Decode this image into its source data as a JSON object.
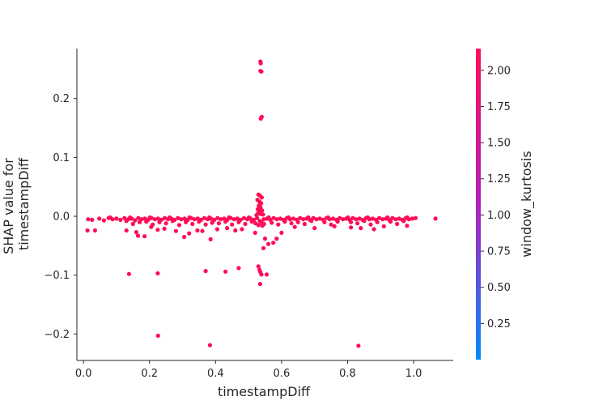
{
  "chart_data": {
    "type": "scatter",
    "xlabel": "timestampDiff",
    "ylabel_lines": [
      "SHAP value for",
      "timestampDiff"
    ],
    "xlim": [
      -0.02,
      1.12
    ],
    "ylim": [
      -0.245,
      0.285
    ],
    "x_ticks": [
      0.0,
      0.2,
      0.4,
      0.6,
      0.8,
      1.0
    ],
    "x_tick_labels": [
      "0.0",
      "0.2",
      "0.4",
      "0.6",
      "0.8",
      "1.0"
    ],
    "y_ticks": [
      0.2,
      0.1,
      0.0,
      -0.1,
      -0.2
    ],
    "y_tick_labels": [
      "0.2",
      "0.1",
      "0.0",
      "−0.1",
      "−0.2"
    ],
    "point_color": "#ff0d57",
    "colorbar": {
      "label": "window_kurtosis",
      "range": [
        0.0,
        2.15
      ],
      "ticks": [
        2.0,
        1.75,
        1.5,
        1.25,
        1.0,
        0.75,
        0.5,
        0.25
      ],
      "tick_labels": [
        "2.00",
        "1.75",
        "1.50",
        "1.25",
        "1.00",
        "0.75",
        "0.50",
        "0.25"
      ],
      "color_low": "#008bfb",
      "color_mid": "#b21ebe",
      "color_high": "#ff0d57"
    },
    "grid": false,
    "points": [
      [
        0.536,
        0.263
      ],
      [
        0.537,
        0.26
      ],
      [
        0.536,
        0.247
      ],
      [
        0.539,
        0.246
      ],
      [
        0.54,
        0.169
      ],
      [
        0.537,
        0.166
      ],
      [
        0.53,
        0.037
      ],
      [
        0.535,
        0.035
      ],
      [
        0.54,
        0.032
      ],
      [
        0.527,
        0.028
      ],
      [
        0.533,
        0.025
      ],
      [
        0.538,
        0.022
      ],
      [
        0.531,
        0.018
      ],
      [
        0.536,
        0.015
      ],
      [
        0.528,
        0.012
      ],
      [
        0.541,
        0.01
      ],
      [
        0.533,
        0.008
      ],
      [
        0.529,
        0.005
      ],
      [
        0.537,
        0.004
      ],
      [
        0.544,
        0.003
      ],
      [
        0.524,
        0.002
      ],
      [
        0.534,
        -0.008
      ],
      [
        0.539,
        -0.01
      ],
      [
        0.521,
        -0.012
      ],
      [
        0.547,
        -0.013
      ],
      [
        0.53,
        -0.015
      ],
      [
        0.542,
        -0.016
      ],
      [
        0.014,
        -0.005
      ],
      [
        0.026,
        -0.006
      ],
      [
        0.048,
        -0.004
      ],
      [
        0.062,
        -0.007
      ],
      [
        0.076,
        -0.003
      ],
      [
        0.088,
        -0.005
      ],
      [
        0.1,
        -0.004
      ],
      [
        0.112,
        -0.006
      ],
      [
        0.124,
        -0.003
      ],
      [
        0.136,
        -0.005
      ],
      [
        0.146,
        -0.004
      ],
      [
        0.156,
        -0.007
      ],
      [
        0.166,
        -0.003
      ],
      [
        0.176,
        -0.005
      ],
      [
        0.186,
        -0.004
      ],
      [
        0.196,
        -0.006
      ],
      [
        0.206,
        -0.003
      ],
      [
        0.216,
        -0.005
      ],
      [
        0.226,
        -0.004
      ],
      [
        0.236,
        -0.006
      ],
      [
        0.246,
        -0.003
      ],
      [
        0.256,
        -0.005
      ],
      [
        0.266,
        -0.004
      ],
      [
        0.276,
        -0.006
      ],
      [
        0.286,
        -0.003
      ],
      [
        0.296,
        -0.005
      ],
      [
        0.306,
        -0.004
      ],
      [
        0.316,
        -0.006
      ],
      [
        0.326,
        -0.003
      ],
      [
        0.336,
        -0.005
      ],
      [
        0.346,
        -0.004
      ],
      [
        0.356,
        -0.006
      ],
      [
        0.366,
        -0.003
      ],
      [
        0.376,
        -0.005
      ],
      [
        0.386,
        -0.004
      ],
      [
        0.396,
        -0.006
      ],
      [
        0.406,
        -0.003
      ],
      [
        0.416,
        -0.005
      ],
      [
        0.426,
        -0.004
      ],
      [
        0.436,
        -0.006
      ],
      [
        0.446,
        -0.003
      ],
      [
        0.456,
        -0.005
      ],
      [
        0.466,
        -0.004
      ],
      [
        0.476,
        -0.006
      ],
      [
        0.486,
        -0.003
      ],
      [
        0.496,
        -0.005
      ],
      [
        0.506,
        -0.004
      ],
      [
        0.516,
        -0.006
      ],
      [
        0.526,
        -0.003
      ],
      [
        0.546,
        -0.005
      ],
      [
        0.556,
        -0.004
      ],
      [
        0.566,
        -0.006
      ],
      [
        0.576,
        -0.003
      ],
      [
        0.586,
        -0.005
      ],
      [
        0.596,
        -0.004
      ],
      [
        0.606,
        -0.006
      ],
      [
        0.616,
        -0.003
      ],
      [
        0.626,
        -0.005
      ],
      [
        0.636,
        -0.004
      ],
      [
        0.646,
        -0.006
      ],
      [
        0.656,
        -0.003
      ],
      [
        0.666,
        -0.005
      ],
      [
        0.676,
        -0.004
      ],
      [
        0.686,
        -0.006
      ],
      [
        0.696,
        -0.003
      ],
      [
        0.706,
        -0.005
      ],
      [
        0.716,
        -0.004
      ],
      [
        0.726,
        -0.006
      ],
      [
        0.736,
        -0.003
      ],
      [
        0.746,
        -0.005
      ],
      [
        0.756,
        -0.004
      ],
      [
        0.766,
        -0.006
      ],
      [
        0.776,
        -0.003
      ],
      [
        0.786,
        -0.005
      ],
      [
        0.796,
        -0.004
      ],
      [
        0.806,
        -0.006
      ],
      [
        0.816,
        -0.003
      ],
      [
        0.826,
        -0.005
      ],
      [
        0.836,
        -0.004
      ],
      [
        0.846,
        -0.006
      ],
      [
        0.856,
        -0.003
      ],
      [
        0.866,
        -0.005
      ],
      [
        0.876,
        -0.004
      ],
      [
        0.886,
        -0.006
      ],
      [
        0.896,
        -0.003
      ],
      [
        0.906,
        -0.005
      ],
      [
        0.916,
        -0.004
      ],
      [
        0.926,
        -0.006
      ],
      [
        0.936,
        -0.003
      ],
      [
        0.946,
        -0.005
      ],
      [
        0.956,
        -0.004
      ],
      [
        0.966,
        -0.006
      ],
      [
        0.976,
        -0.003
      ],
      [
        0.986,
        -0.005
      ],
      [
        0.996,
        -0.004
      ],
      [
        1.006,
        -0.003
      ],
      [
        1.066,
        -0.004
      ],
      [
        0.081,
        -0.002
      ],
      [
        0.141,
        -0.002
      ],
      [
        0.201,
        -0.002
      ],
      [
        0.261,
        -0.002
      ],
      [
        0.321,
        -0.002
      ],
      [
        0.381,
        -0.002
      ],
      [
        0.441,
        -0.002
      ],
      [
        0.501,
        -0.002
      ],
      [
        0.561,
        -0.002
      ],
      [
        0.621,
        -0.002
      ],
      [
        0.681,
        -0.002
      ],
      [
        0.741,
        -0.002
      ],
      [
        0.801,
        -0.002
      ],
      [
        0.861,
        -0.002
      ],
      [
        0.921,
        -0.002
      ],
      [
        0.981,
        -0.002
      ],
      [
        0.13,
        -0.008
      ],
      [
        0.17,
        -0.01
      ],
      [
        0.19,
        -0.009
      ],
      [
        0.23,
        -0.01
      ],
      [
        0.27,
        -0.008
      ],
      [
        0.31,
        -0.01
      ],
      [
        0.35,
        -0.009
      ],
      [
        0.39,
        -0.011
      ],
      [
        0.43,
        -0.009
      ],
      [
        0.47,
        -0.01
      ],
      [
        0.51,
        -0.009
      ],
      [
        0.57,
        -0.011
      ],
      [
        0.61,
        -0.009
      ],
      [
        0.65,
        -0.01
      ],
      [
        0.69,
        -0.008
      ],
      [
        0.73,
        -0.01
      ],
      [
        0.77,
        -0.009
      ],
      [
        0.81,
        -0.01
      ],
      [
        0.85,
        -0.008
      ],
      [
        0.89,
        -0.01
      ],
      [
        0.93,
        -0.009
      ],
      [
        0.97,
        -0.008
      ],
      [
        0.15,
        -0.013
      ],
      [
        0.21,
        -0.014
      ],
      [
        0.25,
        -0.012
      ],
      [
        0.29,
        -0.015
      ],
      [
        0.33,
        -0.013
      ],
      [
        0.37,
        -0.014
      ],
      [
        0.41,
        -0.012
      ],
      [
        0.45,
        -0.014
      ],
      [
        0.49,
        -0.013
      ],
      [
        0.59,
        -0.014
      ],
      [
        0.63,
        -0.012
      ],
      [
        0.67,
        -0.013
      ],
      [
        0.75,
        -0.014
      ],
      [
        0.83,
        -0.012
      ],
      [
        0.87,
        -0.014
      ],
      [
        0.95,
        -0.013
      ],
      [
        0.012,
        -0.024
      ],
      [
        0.035,
        -0.024
      ],
      [
        0.13,
        -0.024
      ],
      [
        0.16,
        -0.027
      ],
      [
        0.165,
        -0.033
      ],
      [
        0.185,
        -0.034
      ],
      [
        0.205,
        -0.018
      ],
      [
        0.225,
        -0.023
      ],
      [
        0.245,
        -0.021
      ],
      [
        0.28,
        -0.025
      ],
      [
        0.305,
        -0.035
      ],
      [
        0.32,
        -0.029
      ],
      [
        0.345,
        -0.024
      ],
      [
        0.36,
        -0.025
      ],
      [
        0.385,
        -0.039
      ],
      [
        0.405,
        -0.022
      ],
      [
        0.435,
        -0.02
      ],
      [
        0.46,
        -0.024
      ],
      [
        0.48,
        -0.022
      ],
      [
        0.52,
        -0.028
      ],
      [
        0.55,
        -0.038
      ],
      [
        0.56,
        -0.047
      ],
      [
        0.575,
        -0.045
      ],
      [
        0.585,
        -0.038
      ],
      [
        0.6,
        -0.028
      ],
      [
        0.545,
        -0.054
      ],
      [
        0.64,
        -0.018
      ],
      [
        0.7,
        -0.02
      ],
      [
        0.76,
        -0.017
      ],
      [
        0.81,
        -0.019
      ],
      [
        0.84,
        -0.02
      ],
      [
        0.88,
        -0.022
      ],
      [
        0.91,
        -0.017
      ],
      [
        0.98,
        -0.016
      ],
      [
        0.138,
        -0.098
      ],
      [
        0.225,
        -0.097
      ],
      [
        0.37,
        -0.093
      ],
      [
        0.43,
        -0.094
      ],
      [
        0.47,
        -0.088
      ],
      [
        0.53,
        -0.085
      ],
      [
        0.533,
        -0.091
      ],
      [
        0.536,
        -0.095
      ],
      [
        0.539,
        -0.099
      ],
      [
        0.555,
        -0.099
      ],
      [
        0.535,
        -0.115
      ],
      [
        0.226,
        -0.203
      ],
      [
        0.383,
        -0.219
      ],
      [
        0.833,
        -0.22
      ]
    ]
  }
}
